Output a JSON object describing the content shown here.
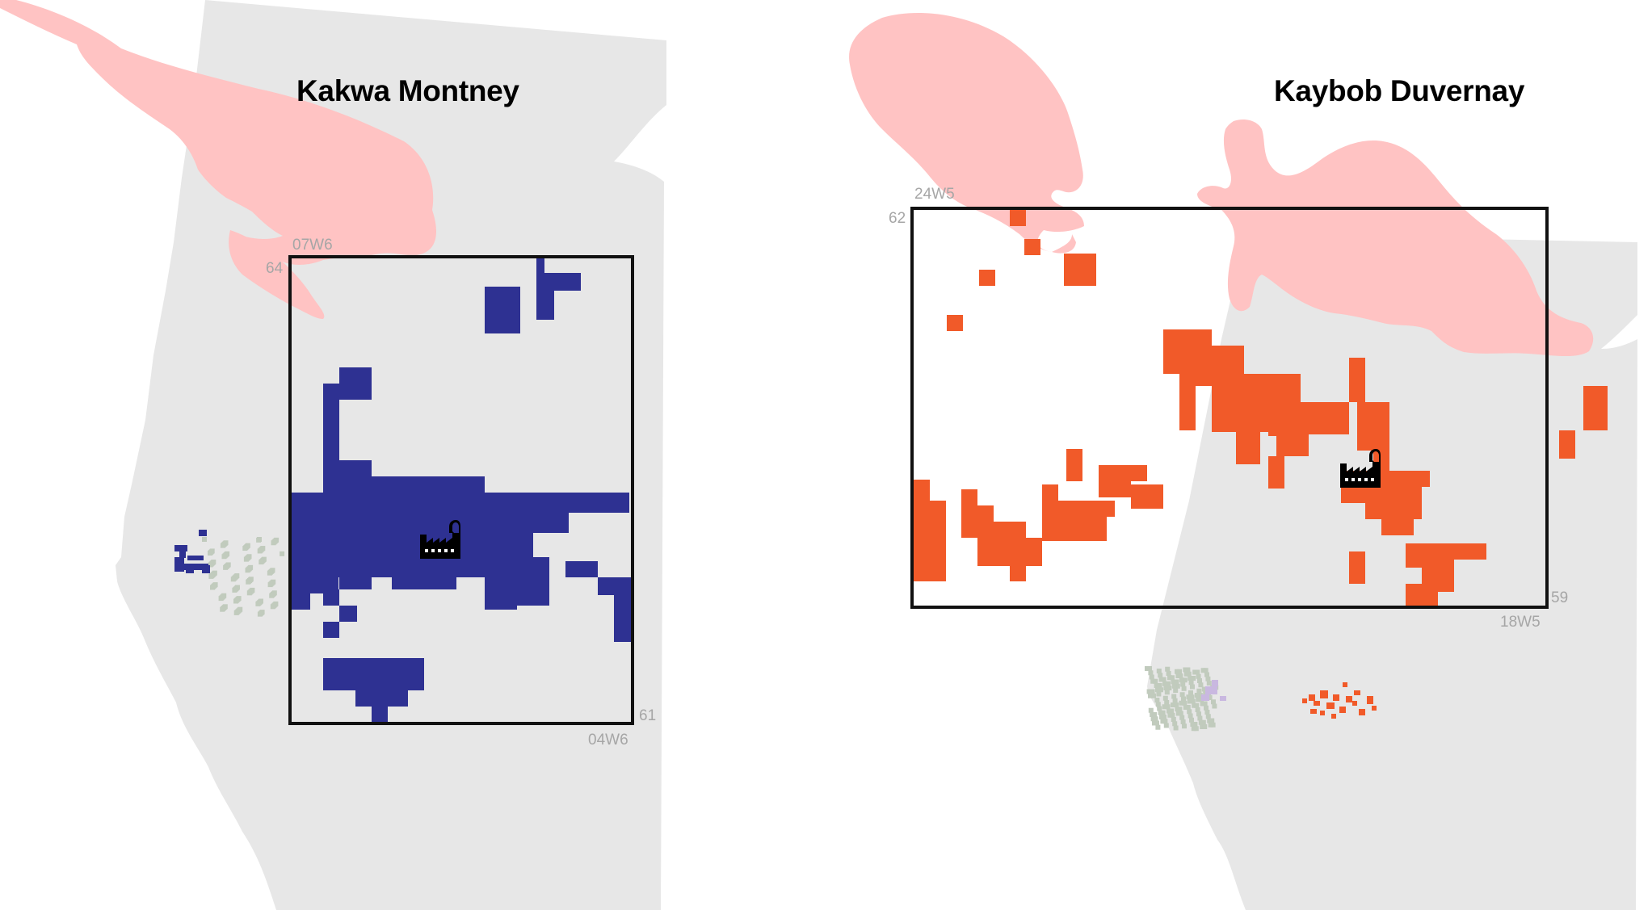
{
  "colors": {
    "land": "#e7e7e7",
    "lake": "#ffc3c3",
    "montney": "#2e3192",
    "duvernay": "#f15a29",
    "other_plays": "#c1cbbd",
    "frame": "#111111",
    "grid_label": "#a6a6a6"
  },
  "maps": [
    {
      "title": "Kakwa Montney",
      "play_color": "#2e3192",
      "frame_labels": {
        "top_range": "07W6",
        "top_township": "64",
        "bottom_township": "61",
        "bottom_range": "04W6"
      },
      "facility_icon": "gas-plant-icon"
    },
    {
      "title": "Kaybob Duvernay",
      "play_color": "#f15a29",
      "frame_labels": {
        "top_range": "24W5",
        "top_township": "62",
        "bottom_township": "59",
        "bottom_range": "18W5"
      },
      "facility_icon": "gas-plant-icon"
    }
  ]
}
